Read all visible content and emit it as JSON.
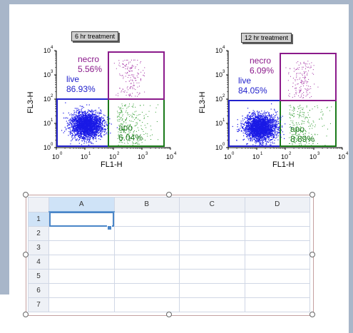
{
  "plots": [
    {
      "title": "6 hr treatment",
      "xlabel": "FL1-H",
      "ylabel": "FL3-H",
      "regions": {
        "necro": {
          "name": "necro",
          "pct": "5.56%",
          "color": "#8b1a8b"
        },
        "live": {
          "name": "live",
          "pct": "86.93%",
          "color": "#2222cc"
        },
        "apo": {
          "name": "apo",
          "pct": "6.04%",
          "color": "#1a7a1a"
        }
      }
    },
    {
      "title": "12 hr treatment",
      "xlabel": "FL1-H",
      "ylabel": "FL3-H",
      "regions": {
        "necro": {
          "name": "necro",
          "pct": "6.09%",
          "color": "#8b1a8b"
        },
        "live": {
          "name": "live",
          "pct": "84.05%",
          "color": "#2222cc"
        },
        "apo": {
          "name": "apo",
          "pct": "8.89%",
          "color": "#1a7a1a"
        }
      }
    }
  ],
  "sheet": {
    "columns": [
      "A",
      "B",
      "C",
      "D"
    ],
    "rows": [
      "1",
      "2",
      "3",
      "4",
      "5",
      "6",
      "7"
    ]
  }
}
